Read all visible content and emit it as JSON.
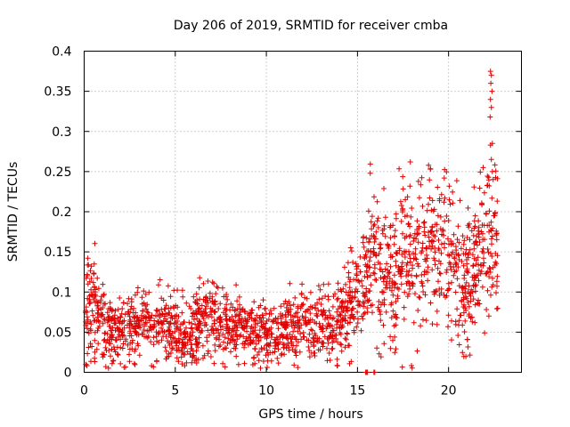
{
  "chart_data": {
    "type": "scatter",
    "title": "Day 206 of 2019, SRMTID for receiver cmba",
    "xlabel": "GPS time / hours",
    "ylabel": "SRMTID / TECUs",
    "xlim": [
      0,
      24
    ],
    "ylim": [
      0,
      0.4
    ],
    "x_ticks": [
      0,
      5,
      10,
      15,
      20
    ],
    "x_tick_labels": [
      "0",
      "5",
      "10",
      "15",
      "20"
    ],
    "y_ticks": [
      0,
      0.05,
      0.1,
      0.15,
      0.2,
      0.25,
      0.3,
      0.35,
      0.4
    ],
    "y_tick_labels": [
      "0",
      "0.05",
      "0.1",
      "0.15",
      "0.2",
      "0.25",
      "0.3",
      "0.35",
      "0.4"
    ],
    "grid": true,
    "marker": "+",
    "color": "#e00000",
    "x_range": [
      0.0,
      22.7
    ],
    "profile": [
      [
        0.0,
        0.065,
        0.025
      ],
      [
        0.3,
        0.09,
        0.035
      ],
      [
        0.6,
        0.075,
        0.03
      ],
      [
        1.0,
        0.06,
        0.025
      ],
      [
        1.5,
        0.05,
        0.02
      ],
      [
        2.5,
        0.055,
        0.02
      ],
      [
        3.5,
        0.06,
        0.025
      ],
      [
        4.5,
        0.065,
        0.025
      ],
      [
        5.5,
        0.04,
        0.02
      ],
      [
        6.5,
        0.065,
        0.025
      ],
      [
        7.5,
        0.065,
        0.025
      ],
      [
        8.5,
        0.055,
        0.02
      ],
      [
        9.5,
        0.05,
        0.02
      ],
      [
        10.5,
        0.05,
        0.018
      ],
      [
        11.5,
        0.055,
        0.02
      ],
      [
        12.5,
        0.06,
        0.02
      ],
      [
        13.5,
        0.06,
        0.022
      ],
      [
        14.2,
        0.07,
        0.025
      ],
      [
        14.8,
        0.09,
        0.03
      ],
      [
        15.3,
        0.1,
        0.035
      ],
      [
        15.8,
        0.16,
        0.045
      ],
      [
        16.3,
        0.12,
        0.05
      ],
      [
        17.0,
        0.12,
        0.045
      ],
      [
        18.0,
        0.15,
        0.045
      ],
      [
        19.0,
        0.16,
        0.045
      ],
      [
        19.8,
        0.15,
        0.045
      ],
      [
        20.5,
        0.11,
        0.04
      ],
      [
        21.0,
        0.11,
        0.04
      ],
      [
        21.8,
        0.15,
        0.05
      ],
      [
        22.3,
        0.18,
        0.07
      ],
      [
        22.7,
        0.15,
        0.05
      ]
    ],
    "spike_points": [
      {
        "x": 22.3,
        "y": 0.375
      },
      {
        "x": 22.35,
        "y": 0.37
      },
      {
        "x": 22.32,
        "y": 0.36
      },
      {
        "x": 22.38,
        "y": 0.35
      },
      {
        "x": 22.3,
        "y": 0.34
      },
      {
        "x": 22.35,
        "y": 0.33
      },
      {
        "x": 22.28,
        "y": 0.318
      },
      {
        "x": 22.4,
        "y": 0.285
      },
      {
        "x": 22.3,
        "y": 0.283
      },
      {
        "x": 22.35,
        "y": 0.265
      },
      {
        "x": 22.4,
        "y": 0.25
      },
      {
        "x": 17.9,
        "y": 0.262
      },
      {
        "x": 18.9,
        "y": 0.258
      },
      {
        "x": 15.7,
        "y": 0.248
      },
      {
        "x": 21.9,
        "y": 0.255
      },
      {
        "x": 0.2,
        "y": 0.142
      },
      {
        "x": 0.55,
        "y": 0.135
      },
      {
        "x": 13.9,
        "y": 0.008
      },
      {
        "x": 13.5,
        "y": 0.015
      }
    ],
    "zero_points": [
      {
        "x": 15.45,
        "y": 0.0
      },
      {
        "x": 15.5,
        "y": 0.0
      },
      {
        "x": 15.55,
        "y": 0.0
      },
      {
        "x": 15.9,
        "y": 0.0
      },
      {
        "x": 15.95,
        "y": 0.0
      }
    ],
    "n_points": 2000
  }
}
